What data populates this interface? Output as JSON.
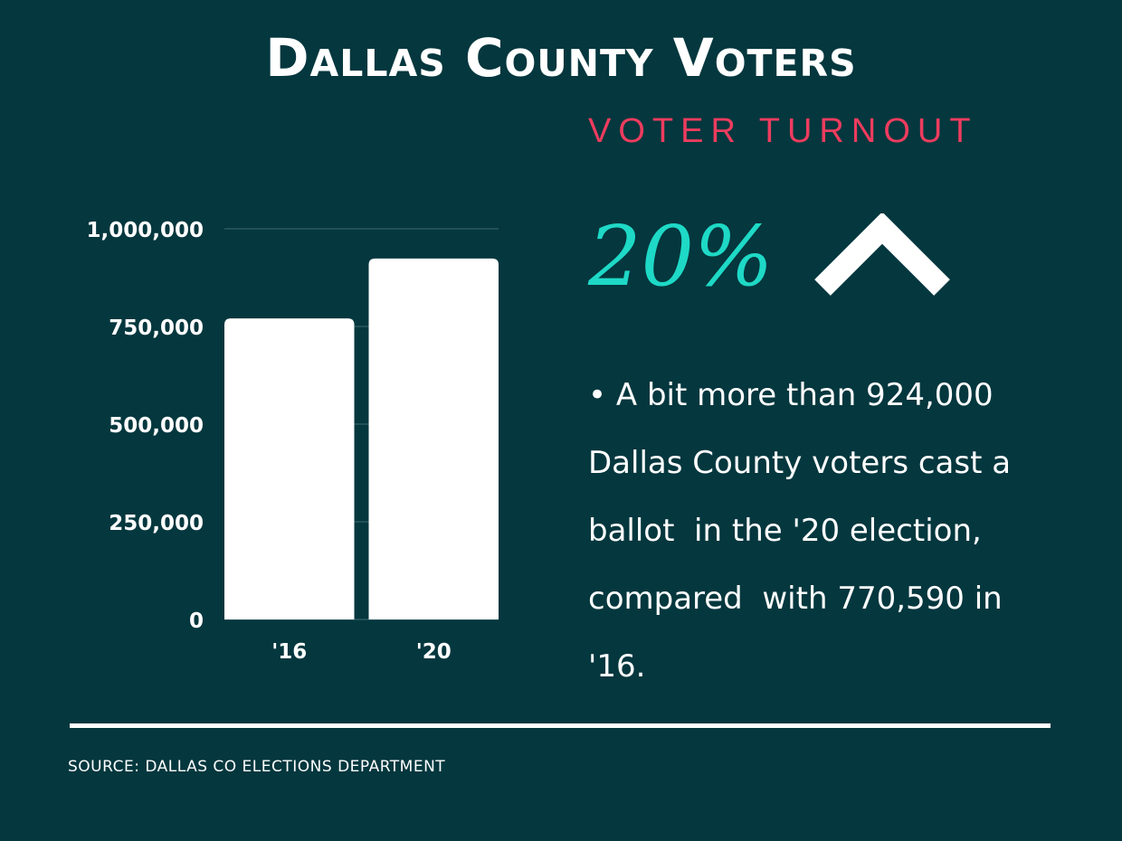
{
  "header": {
    "title": "Dallas County Voters",
    "subtitle": "VOTER TURNOUT"
  },
  "stat": {
    "value": "20%",
    "direction_icon": "chevron-up-icon"
  },
  "description": {
    "bullet": "•",
    "text": "A bit more than 924,000 Dallas County voters cast a ballot  in the '20 election, compared  with 770,590 in '16."
  },
  "footer": {
    "source": "SOURCE: DALLAS CO ELECTIONS DEPARTMENT"
  },
  "colors": {
    "background": "#04373e",
    "accent_red": "#ee3c5e",
    "accent_teal": "#1ed9c6",
    "bars": "#ffffff"
  },
  "chart_data": {
    "type": "bar",
    "categories": [
      "'16",
      "'20"
    ],
    "values": [
      770590,
      924000
    ],
    "ylim": [
      0,
      1000000
    ],
    "yticks": [
      0,
      250000,
      500000,
      750000,
      1000000
    ],
    "ytick_labels": [
      "0",
      "250,000",
      "500,000",
      "750,000",
      "1,000,000"
    ],
    "grid": true,
    "legend": "none"
  }
}
